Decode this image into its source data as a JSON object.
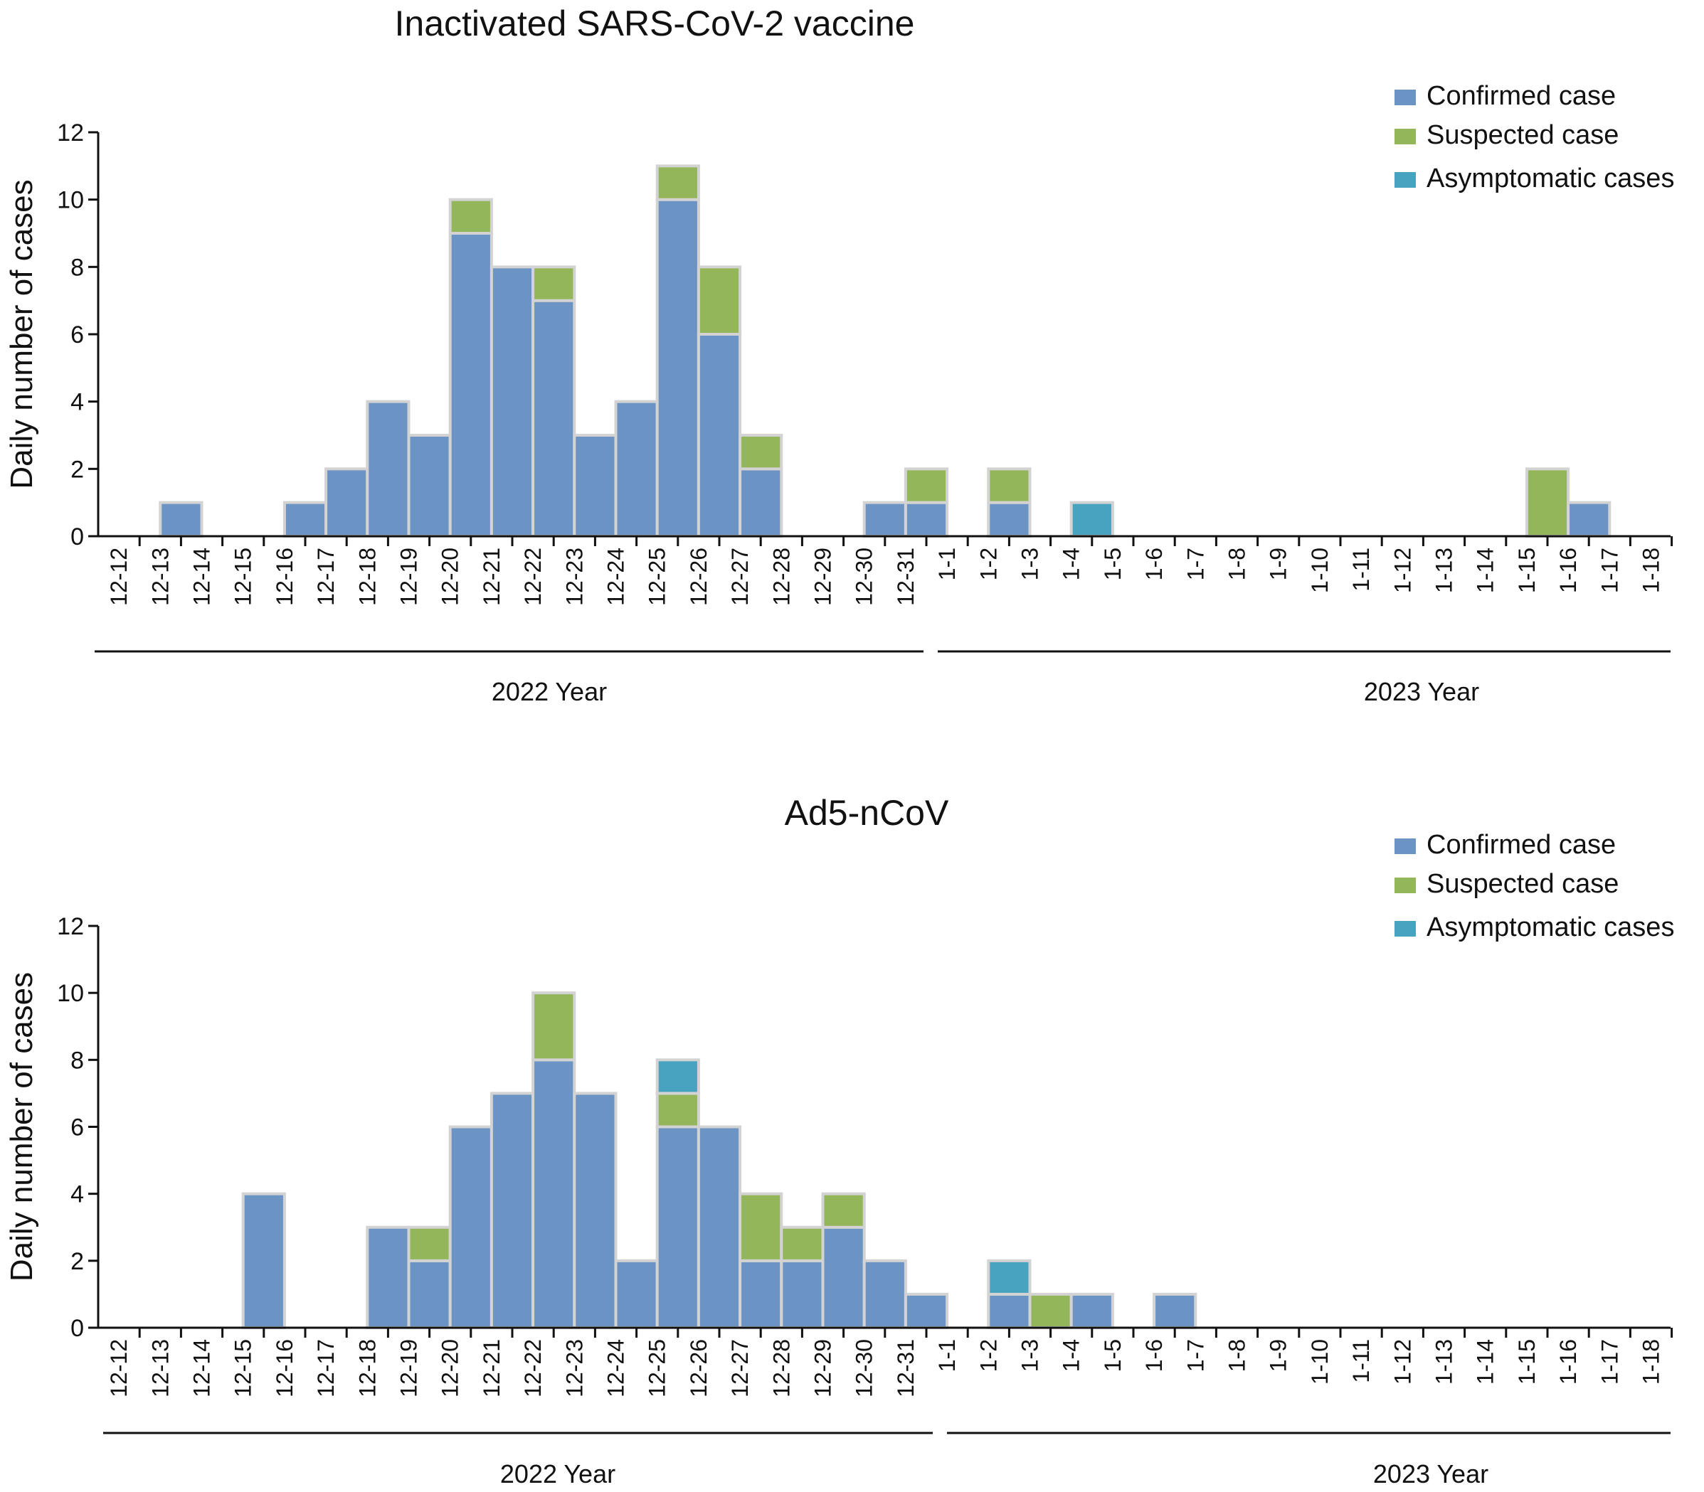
{
  "colors": {
    "confirmed": "#6b93c3",
    "suspected": "#93b65a",
    "asymptomatic": "#47a3c0",
    "bar_stroke": "#d3d3d3",
    "axis": "#111111"
  },
  "chart_data": [
    {
      "type": "bar",
      "stacked": true,
      "title": "Inactivated SARS-CoV-2 vaccine",
      "xlabel": "",
      "ylabel": "Daily number of cases",
      "ylim": [
        0,
        12
      ],
      "yticks": [
        0,
        2,
        4,
        6,
        8,
        10,
        12
      ],
      "legend_position": "top-right",
      "categories": [
        "12-12",
        "12-13",
        "12-14",
        "12-15",
        "12-16",
        "12-17",
        "12-18",
        "12-19",
        "12-20",
        "12-21",
        "12-22",
        "12-23",
        "12-24",
        "12-25",
        "12-26",
        "12-27",
        "12-28",
        "12-29",
        "12-30",
        "12-31",
        "1-1",
        "1-2",
        "1-3",
        "1-4",
        "1-5",
        "1-6",
        "1-7",
        "1-8",
        "1-9",
        "1-10",
        "1-11",
        "1-12",
        "1-13",
        "1-14",
        "1-15",
        "1-16",
        "1-17",
        "1-18"
      ],
      "series": [
        {
          "name": "Confirmed case",
          "color_key": "confirmed",
          "values": [
            0,
            1,
            0,
            0,
            1,
            2,
            4,
            3,
            9,
            8,
            7,
            3,
            4,
            10,
            6,
            2,
            0,
            0,
            1,
            1,
            0,
            1,
            0,
            0,
            0,
            0,
            0,
            0,
            0,
            0,
            0,
            0,
            0,
            0,
            0,
            1,
            0,
            0
          ]
        },
        {
          "name": "Suspected case",
          "color_key": "suspected",
          "values": [
            0,
            0,
            0,
            0,
            0,
            0,
            0,
            0,
            1,
            0,
            1,
            0,
            0,
            1,
            2,
            1,
            0,
            0,
            0,
            1,
            0,
            1,
            0,
            0,
            0,
            0,
            0,
            0,
            0,
            0,
            0,
            0,
            0,
            0,
            2,
            0,
            0,
            0
          ]
        },
        {
          "name": "Asymptomatic cases",
          "color_key": "asymptomatic",
          "values": [
            0,
            0,
            0,
            0,
            0,
            0,
            0,
            0,
            0,
            0,
            0,
            0,
            0,
            0,
            0,
            0,
            0,
            0,
            0,
            0,
            0,
            0,
            0,
            1,
            0,
            0,
            0,
            0,
            0,
            0,
            0,
            0,
            0,
            0,
            0,
            0,
            0,
            0
          ]
        }
      ],
      "year_groups": [
        {
          "label": "2022 Year",
          "from": "12-12",
          "to": "12-31"
        },
        {
          "label": "2023 Year",
          "from": "1-1",
          "to": "1-18"
        }
      ]
    },
    {
      "type": "bar",
      "stacked": true,
      "title": "Ad5-nCoV",
      "xlabel": "",
      "ylabel": "Daily number of cases",
      "ylim": [
        0,
        12
      ],
      "yticks": [
        0,
        2,
        4,
        6,
        8,
        10,
        12
      ],
      "legend_position": "top-right",
      "categories": [
        "12-12",
        "12-13",
        "12-14",
        "12-15",
        "12-16",
        "12-17",
        "12-18",
        "12-19",
        "12-20",
        "12-21",
        "12-22",
        "12-23",
        "12-24",
        "12-25",
        "12-26",
        "12-27",
        "12-28",
        "12-29",
        "12-30",
        "12-31",
        "1-1",
        "1-2",
        "1-3",
        "1-4",
        "1-5",
        "1-6",
        "1-7",
        "1-8",
        "1-9",
        "1-10",
        "1-11",
        "1-12",
        "1-13",
        "1-14",
        "1-15",
        "1-16",
        "1-17",
        "1-18"
      ],
      "series": [
        {
          "name": "Confirmed case",
          "color_key": "confirmed",
          "values": [
            0,
            0,
            0,
            4,
            0,
            0,
            3,
            2,
            6,
            7,
            8,
            7,
            2,
            6,
            6,
            2,
            2,
            3,
            2,
            1,
            0,
            1,
            0,
            1,
            0,
            1,
            0,
            0,
            0,
            0,
            0,
            0,
            0,
            0,
            0,
            0,
            0,
            0
          ]
        },
        {
          "name": "Suspected case",
          "color_key": "suspected",
          "values": [
            0,
            0,
            0,
            0,
            0,
            0,
            0,
            1,
            0,
            0,
            2,
            0,
            0,
            1,
            0,
            2,
            1,
            1,
            0,
            0,
            0,
            0,
            1,
            0,
            0,
            0,
            0,
            0,
            0,
            0,
            0,
            0,
            0,
            0,
            0,
            0,
            0,
            0
          ]
        },
        {
          "name": "Asymptomatic cases",
          "color_key": "asymptomatic",
          "values": [
            0,
            0,
            0,
            0,
            0,
            0,
            0,
            0,
            0,
            0,
            0,
            0,
            0,
            1,
            0,
            0,
            0,
            0,
            0,
            0,
            0,
            1,
            0,
            0,
            0,
            0,
            0,
            0,
            0,
            0,
            0,
            0,
            0,
            0,
            0,
            0,
            0,
            0
          ]
        }
      ],
      "year_groups": [
        {
          "label": "2022 Year",
          "from": "12-12",
          "to": "12-31"
        },
        {
          "label": "2023 Year",
          "from": "1-1",
          "to": "1-18"
        }
      ]
    }
  ]
}
